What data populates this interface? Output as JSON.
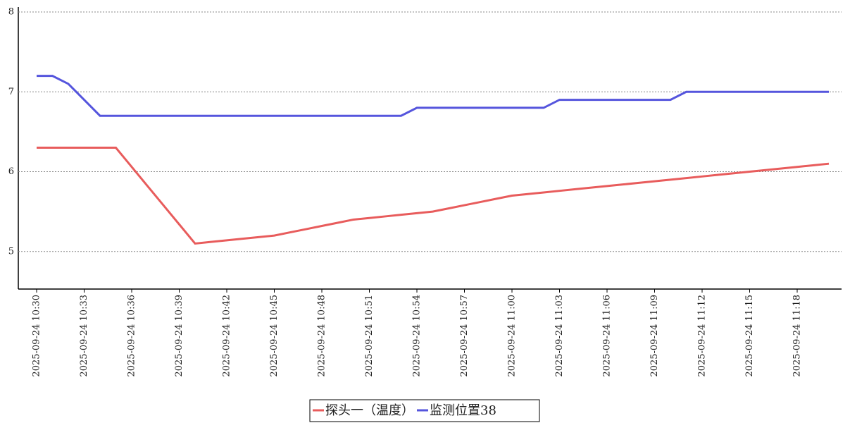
{
  "chart_data": {
    "type": "line",
    "categories": [
      "2025-09-24 10:30",
      null,
      null,
      "2025-09-24 10:33",
      null,
      null,
      "2025-09-24 10:36",
      null,
      null,
      "2025-09-24 10:39",
      null,
      null,
      "2025-09-24 10:42",
      null,
      null,
      "2025-09-24 10:45",
      null,
      null,
      "2025-09-24 10:48",
      null,
      null,
      "2025-09-24 10:51",
      null,
      null,
      "2025-09-24 10:54",
      null,
      null,
      "2025-09-24 10:57",
      null,
      null,
      "2025-09-24 11:00",
      null,
      null,
      "2025-09-24 11:03",
      null,
      null,
      "2025-09-24 11:06",
      null,
      null,
      "2025-09-24 11:09",
      null,
      null,
      "2025-09-24 11:12",
      null,
      null,
      "2025-09-24 11:15",
      null,
      null,
      "2025-09-24 11:18",
      null,
      null
    ],
    "series": [
      {
        "name": "探头一（温度）",
        "color": "#e85c5c",
        "values": [
          6.3,
          6.3,
          6.3,
          6.3,
          6.3,
          6.3,
          6.06,
          5.82,
          5.58,
          5.34,
          5.1,
          5.12,
          5.14,
          5.16,
          5.18,
          5.2,
          5.24,
          5.28,
          5.32,
          5.36,
          5.4,
          5.42,
          5.44,
          5.46,
          5.48,
          5.5,
          5.54,
          5.58,
          5.62,
          5.66,
          5.7,
          5.72,
          5.74,
          5.76,
          5.78,
          5.8,
          5.82,
          5.84,
          5.86,
          5.88,
          5.9,
          5.92,
          5.94,
          5.96,
          5.98,
          6.0,
          6.02,
          6.04,
          6.06,
          6.08,
          6.1
        ]
      },
      {
        "name": "监测位置38",
        "color": "#5555dd",
        "values": [
          7.2,
          7.2,
          7.1,
          6.9,
          6.7,
          6.7,
          6.7,
          6.7,
          6.7,
          6.7,
          6.7,
          6.7,
          6.7,
          6.7,
          6.7,
          6.7,
          6.7,
          6.7,
          6.7,
          6.7,
          6.7,
          6.7,
          6.7,
          6.7,
          6.8,
          6.8,
          6.8,
          6.8,
          6.8,
          6.8,
          6.8,
          6.8,
          6.8,
          6.9,
          6.9,
          6.9,
          6.9,
          6.9,
          6.9,
          6.9,
          6.9,
          7.0,
          7.0,
          7.0,
          7.0,
          7.0,
          7.0,
          7.0,
          7.0,
          7.0,
          7.0
        ]
      }
    ],
    "ylim": [
      4.53,
      8
    ],
    "yticks": [
      5,
      6,
      7,
      8
    ],
    "grid": true
  }
}
